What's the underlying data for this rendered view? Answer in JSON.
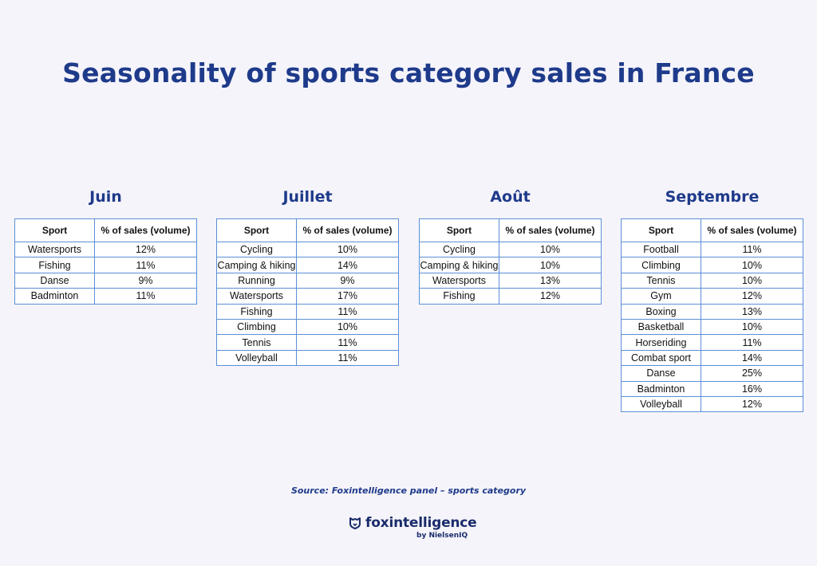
{
  "title": "Seasonality of sports category sales in France",
  "table_headers": {
    "sport": "Sport",
    "sales": "% of sales (volume)"
  },
  "months": [
    {
      "name": "Juin",
      "rows": [
        [
          "Watersports",
          "12%"
        ],
        [
          "Fishing",
          "11%"
        ],
        [
          "Danse",
          "9%"
        ],
        [
          "Badminton",
          "11%"
        ]
      ]
    },
    {
      "name": "Juillet",
      "rows": [
        [
          "Cycling",
          "10%"
        ],
        [
          "Camping & hiking",
          "14%"
        ],
        [
          "Running",
          "9%"
        ],
        [
          "Watersports",
          "17%"
        ],
        [
          "Fishing",
          "11%"
        ],
        [
          "Climbing",
          "10%"
        ],
        [
          "Tennis",
          "11%"
        ],
        [
          "Volleyball",
          "11%"
        ]
      ]
    },
    {
      "name": "Août",
      "rows": [
        [
          "Cycling",
          "10%"
        ],
        [
          "Camping & hiking",
          "10%"
        ],
        [
          "Watersports",
          "13%"
        ],
        [
          "Fishing",
          "12%"
        ]
      ]
    },
    {
      "name": "Septembre",
      "rows": [
        [
          "Football",
          "11%"
        ],
        [
          "Climbing",
          "10%"
        ],
        [
          "Tennis",
          "10%"
        ],
        [
          "Gym",
          "12%"
        ],
        [
          "Boxing",
          "13%"
        ],
        [
          "Basketball",
          "10%"
        ],
        [
          "Horseriding",
          "11%"
        ],
        [
          "Combat sport",
          "14%"
        ],
        [
          "Danse",
          "25%"
        ],
        [
          "Badminton",
          "16%"
        ],
        [
          "Volleyball",
          "12%"
        ]
      ]
    }
  ],
  "source": "Source: Foxintelligence panel – sports category",
  "logo": {
    "name": "foxintelligence",
    "sub": "by NielsenIQ",
    "icon": "fox-shield-icon"
  },
  "colors": {
    "title": "#1e3a8a",
    "border": "#5b8fd6",
    "background": "#f5f4fa"
  }
}
